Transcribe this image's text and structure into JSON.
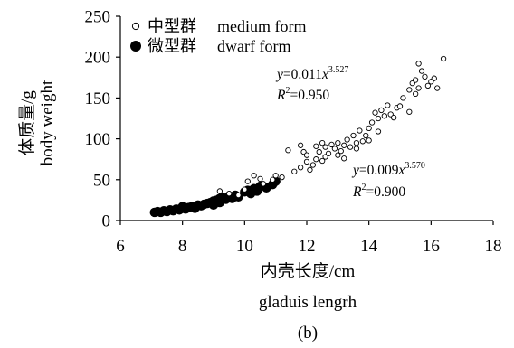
{
  "chart_data": {
    "type": "scatter",
    "panel_label": "(b)",
    "xlabel_cn": "内壳长度/cm",
    "xlabel_en": "gladuis lengrh",
    "ylabel_cn": "体质量/g",
    "ylabel_en": "body weight",
    "xlim": [
      6,
      18
    ],
    "ylim": [
      0,
      250
    ],
    "xticks": [
      6,
      8,
      10,
      12,
      14,
      16,
      18
    ],
    "yticks": [
      0,
      50,
      100,
      150,
      200,
      250
    ],
    "grid": false,
    "legend_position": "top-left",
    "series": [
      {
        "name_cn": "中型群",
        "name_en": "medium form",
        "marker": "open-circle",
        "equation": {
          "y": "y",
          "coef": "=0.011",
          "x": "x",
          "exp": "3.527"
        },
        "r2": {
          "R": "R",
          "two": "2",
          "val": "=0.950"
        },
        "points": [
          [
            9.2,
            36
          ],
          [
            9.5,
            33
          ],
          [
            9.8,
            31
          ],
          [
            10.0,
            38
          ],
          [
            10.1,
            48
          ],
          [
            10.3,
            55
          ],
          [
            10.5,
            51
          ],
          [
            10.6,
            45
          ],
          [
            10.9,
            50
          ],
          [
            11.0,
            55
          ],
          [
            11.2,
            53
          ],
          [
            11.4,
            86
          ],
          [
            11.6,
            60
          ],
          [
            11.8,
            65
          ],
          [
            11.8,
            92
          ],
          [
            11.9,
            84
          ],
          [
            12.0,
            72
          ],
          [
            12.0,
            80
          ],
          [
            12.1,
            62
          ],
          [
            12.2,
            68
          ],
          [
            12.3,
            91
          ],
          [
            12.3,
            75
          ],
          [
            12.4,
            84
          ],
          [
            12.5,
            73
          ],
          [
            12.5,
            95
          ],
          [
            12.6,
            78
          ],
          [
            12.6,
            90
          ],
          [
            12.7,
            82
          ],
          [
            12.8,
            93
          ],
          [
            12.9,
            88
          ],
          [
            13.0,
            80
          ],
          [
            13.0,
            95
          ],
          [
            13.1,
            85
          ],
          [
            13.2,
            76
          ],
          [
            13.2,
            92
          ],
          [
            13.3,
            99
          ],
          [
            13.4,
            90
          ],
          [
            13.5,
            104
          ],
          [
            13.6,
            88
          ],
          [
            13.6,
            95
          ],
          [
            13.7,
            110
          ],
          [
            13.8,
            97
          ],
          [
            13.9,
            104
          ],
          [
            14.0,
            98
          ],
          [
            14.0,
            113
          ],
          [
            14.1,
            120
          ],
          [
            14.2,
            132
          ],
          [
            14.3,
            109
          ],
          [
            14.3,
            125
          ],
          [
            14.4,
            135
          ],
          [
            14.5,
            128
          ],
          [
            14.6,
            141
          ],
          [
            14.7,
            130
          ],
          [
            14.8,
            126
          ],
          [
            14.9,
            138
          ],
          [
            15.0,
            140
          ],
          [
            15.1,
            150
          ],
          [
            15.3,
            133
          ],
          [
            15.3,
            160
          ],
          [
            15.4,
            168
          ],
          [
            15.5,
            172
          ],
          [
            15.5,
            155
          ],
          [
            15.6,
            162
          ],
          [
            15.6,
            192
          ],
          [
            15.7,
            183
          ],
          [
            15.8,
            176
          ],
          [
            15.9,
            165
          ],
          [
            16.0,
            170
          ],
          [
            16.1,
            174
          ],
          [
            16.2,
            162
          ],
          [
            16.4,
            198
          ]
        ]
      },
      {
        "name_cn": "微型群",
        "name_en": "dwarf form",
        "marker": "filled-circle",
        "equation": {
          "y": "y",
          "coef": "=0.009",
          "x": "x",
          "exp": "3.570"
        },
        "r2": {
          "R": "R",
          "two": "2",
          "val": "=0.900"
        },
        "points": [
          [
            7.1,
            10
          ],
          [
            7.2,
            11
          ],
          [
            7.3,
            10
          ],
          [
            7.4,
            12
          ],
          [
            7.5,
            11
          ],
          [
            7.6,
            13
          ],
          [
            7.7,
            12
          ],
          [
            7.8,
            14
          ],
          [
            7.9,
            13
          ],
          [
            8.0,
            15
          ],
          [
            8.0,
            17
          ],
          [
            8.1,
            14
          ],
          [
            8.2,
            16
          ],
          [
            8.3,
            17
          ],
          [
            8.4,
            15
          ],
          [
            8.5,
            19
          ],
          [
            8.6,
            18
          ],
          [
            8.7,
            20
          ],
          [
            8.8,
            21
          ],
          [
            8.9,
            22
          ],
          [
            9.0,
            24
          ],
          [
            9.0,
            19
          ],
          [
            9.1,
            25
          ],
          [
            9.2,
            22
          ],
          [
            9.2,
            27
          ],
          [
            9.3,
            28
          ],
          [
            9.4,
            26
          ],
          [
            9.5,
            30
          ],
          [
            9.6,
            27
          ],
          [
            9.7,
            31
          ],
          [
            9.8,
            29
          ],
          [
            10.0,
            35
          ],
          [
            10.1,
            37
          ],
          [
            10.2,
            33
          ],
          [
            10.3,
            39
          ],
          [
            10.4,
            36
          ],
          [
            10.5,
            42
          ],
          [
            10.7,
            40
          ],
          [
            10.9,
            44
          ],
          [
            11.0,
            48
          ]
        ]
      }
    ]
  }
}
